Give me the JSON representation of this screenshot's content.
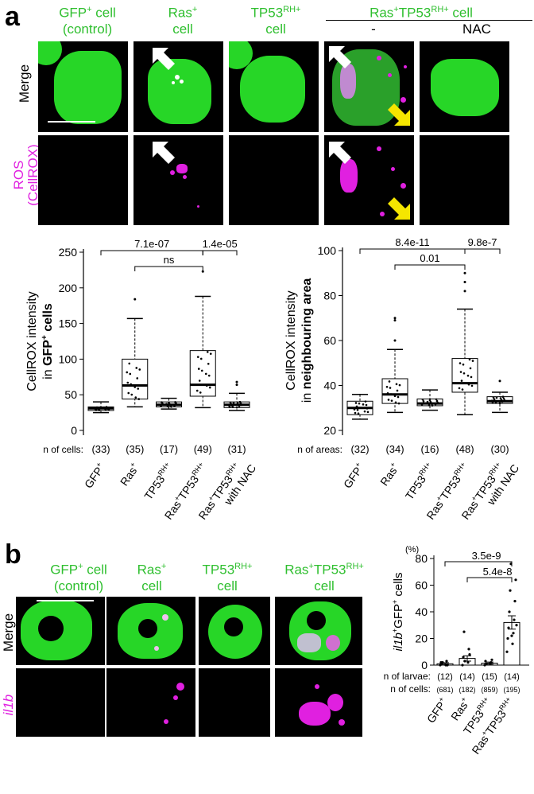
{
  "panel_a": {
    "letter": "a",
    "columns": [
      {
        "line1": "GFP",
        "sup1": "+",
        "line1b": " cell",
        "line2": "(control)"
      },
      {
        "line1": "Ras",
        "sup1": "+",
        "line1b": "",
        "line2": "cell"
      },
      {
        "line1": "TP53",
        "sup1": "RH+",
        "line1b": "",
        "line2": "cell"
      },
      {
        "line1": "Ras",
        "sup1": "+",
        "line1b": "TP53",
        "sup2": "RH+",
        "line1c": " cell"
      }
    ],
    "sub_cols": [
      "-",
      "NAC"
    ],
    "row_labels": {
      "merge": "Merge",
      "ros1": "ROS",
      "ros2": "(CellROX)"
    }
  },
  "chart_data": [
    {
      "type": "box",
      "ylabel": "CellROX intensity in GFP+ cells",
      "ylabel_line1": "CellROX intensity",
      "ylabel_line2_pre": "in ",
      "ylabel_line2_bold": "GFP",
      "ylabel_line2_sup": "+",
      "ylabel_line2_post": " cells",
      "ylim": [
        0,
        250
      ],
      "yticks": [
        0,
        50,
        100,
        150,
        200,
        250
      ],
      "n_label": "n of cells:",
      "n_values": [
        "(33)",
        "(35)",
        "(17)",
        "(49)",
        "(31)"
      ],
      "categories": [
        "GFP+",
        "Ras+",
        "TP53RH+",
        "Ras+TP53RH+",
        "Ras+TP53RH+ with NAC"
      ],
      "boxes": [
        {
          "min": 25,
          "q1": 28,
          "median": 31,
          "q3": 33,
          "max": 40
        },
        {
          "min": 33,
          "q1": 44,
          "median": 63,
          "q3": 100,
          "max": 157
        },
        {
          "min": 30,
          "q1": 33,
          "median": 36,
          "q3": 40,
          "max": 45
        },
        {
          "min": 32,
          "q1": 48,
          "median": 64,
          "q3": 112,
          "max": 188
        },
        {
          "min": 28,
          "q1": 32,
          "median": 36,
          "q3": 40,
          "max": 52
        }
      ],
      "outliers": [
        [],
        [
          184
        ],
        [],
        [
          223
        ],
        [
          68,
          64
        ]
      ],
      "comparisons": [
        {
          "from": 0,
          "to": 3,
          "label": "7.1e-07"
        },
        {
          "from": 1,
          "to": 3,
          "label": "ns"
        },
        {
          "from": 3,
          "to": 4,
          "label": "1.4e-05"
        }
      ]
    },
    {
      "type": "box",
      "ylabel": "CellROX intensity in neighbouring area",
      "ylabel_line1": "CellROX intensity",
      "ylabel_line2_pre": "in ",
      "ylabel_line2_bold": "neighbouring area",
      "ylim": [
        20,
        100
      ],
      "yticks": [
        20,
        40,
        60,
        80,
        100
      ],
      "n_label": "n of areas:",
      "n_values": [
        "(32)",
        "(34)",
        "(16)",
        "(48)",
        "(30)"
      ],
      "categories": [
        "GFP+",
        "Ras+",
        "TP53RH+",
        "Ras+TP53RH+",
        "Ras+TP53RH+ with NAC"
      ],
      "boxes": [
        {
          "min": 25,
          "q1": 27,
          "median": 30,
          "q3": 33,
          "max": 36
        },
        {
          "min": 28,
          "q1": 32,
          "median": 36,
          "q3": 43,
          "max": 56
        },
        {
          "min": 29,
          "q1": 31,
          "median": 32,
          "q3": 34,
          "max": 38
        },
        {
          "min": 27,
          "q1": 37,
          "median": 41,
          "q3": 52,
          "max": 74
        },
        {
          "min": 28,
          "q1": 32,
          "median": 33,
          "q3": 35,
          "max": 37
        }
      ],
      "outliers": [
        [],
        [
          69,
          70,
          60
        ],
        [],
        [
          90,
          86,
          82
        ],
        [
          42
        ]
      ],
      "comparisons": [
        {
          "from": 0,
          "to": 3,
          "label": "8.4e-11"
        },
        {
          "from": 1,
          "to": 3,
          "label": "0.01"
        },
        {
          "from": 3,
          "to": 4,
          "label": "9.8e-7"
        }
      ]
    },
    {
      "type": "bar",
      "ylabel_pre_italic": "il1b",
      "ylabel_sup": "+",
      "ylabel_mid": "GFP",
      "ylabel_sup2": "+",
      "ylabel_post": " cells",
      "unit": "(%)",
      "ylim": [
        0,
        80
      ],
      "yticks": [
        0,
        20,
        40,
        60,
        80
      ],
      "categories": [
        "GFP+",
        "Ras+",
        "TP53RH+",
        "Ras+TP53RH+"
      ],
      "values": [
        1,
        5,
        1.5,
        32
      ],
      "errors": [
        0.8,
        2,
        0.8,
        5
      ],
      "points": [
        [
          0,
          0,
          2,
          3,
          1,
          0,
          2
        ],
        [
          0,
          2,
          6,
          12,
          25,
          8,
          3
        ],
        [
          0,
          1,
          3,
          2,
          1,
          4
        ],
        [
          10,
          16,
          20,
          24,
          28,
          34,
          40,
          48,
          56,
          64,
          76,
          30,
          22
        ]
      ],
      "n_larvae_label": "n of larvae:",
      "n_larvae": [
        "(12)",
        "(14)",
        "(15)",
        "(14)"
      ],
      "n_cells_label": "n of cells:",
      "n_cells": [
        "(681)",
        "(182)",
        "(859)",
        "(195)"
      ],
      "comparisons": [
        {
          "from": 0,
          "to": 3,
          "label": "3.5e-9"
        },
        {
          "from": 1,
          "to": 3,
          "label": "5.4e-8"
        }
      ]
    }
  ],
  "panel_b": {
    "letter": "b",
    "columns": [
      {
        "line1": "GFP",
        "sup1": "+",
        "line1b": " cell",
        "line2": "(control)"
      },
      {
        "line1": "Ras",
        "sup1": "+",
        "line1b": "",
        "line2": "cell"
      },
      {
        "line1": "TP53",
        "sup1": "RH+",
        "line1b": "",
        "line2": "cell"
      },
      {
        "line1": "Ras",
        "sup1": "+",
        "line1b": "TP53",
        "sup2": "RH+",
        "line2": "cell"
      }
    ],
    "row_labels": {
      "merge": "Merge",
      "il1b": "il1b"
    }
  },
  "cat_labels": {
    "c0": [
      "GFP",
      "+"
    ],
    "c1": [
      "Ras",
      "+"
    ],
    "c2": [
      "TP53",
      "RH+"
    ],
    "c3": [
      "Ras",
      "+",
      "TP53",
      "RH+"
    ],
    "c4_l1": [
      "Ras",
      "+",
      "TP53",
      "RH+"
    ],
    "c4_l2": "with NAC"
  }
}
